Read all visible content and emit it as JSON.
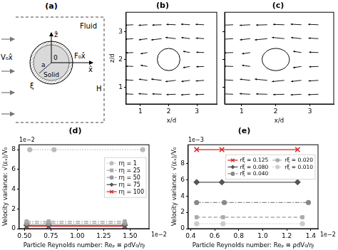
{
  "diagram": {
    "panel_label": "(a)",
    "labels": {
      "fluid": "Fluid",
      "solid": "Solid",
      "velocity": "V₀x̂",
      "force": "F₀x̂",
      "z_axis": "ẑ",
      "x_axis": "x̂",
      "origin": "0",
      "radius": "a",
      "xi": "ξ",
      "height": "H"
    }
  },
  "chart_data": [
    {
      "type": "quiver",
      "panel_label": "(b)",
      "x_label": "x/d",
      "y_label": "z/d",
      "xlim": [
        0.5,
        3.7
      ],
      "ylim": [
        0.4,
        3.7
      ],
      "xticks": [
        1,
        2,
        3
      ],
      "yticks": [
        1,
        2,
        3
      ],
      "grid": false,
      "circle": {
        "x": 2,
        "y": 2,
        "r": 0.4
      },
      "arrows": [
        [
          0.75,
          0.75,
          -1,
          0.05
        ],
        [
          1.25,
          0.75,
          -1.04,
          0.07
        ],
        [
          1.75,
          0.75,
          -1.09,
          0.04
        ],
        [
          2.25,
          0.75,
          -1.09,
          -0.04
        ],
        [
          2.75,
          0.75,
          -1.04,
          -0.07
        ],
        [
          3.25,
          0.75,
          -1,
          -0.05
        ],
        [
          0.75,
          1.25,
          -0.97,
          0.07
        ],
        [
          1.25,
          1.25,
          -1,
          0.14
        ],
        [
          1.75,
          1.25,
          -1.21,
          0.15
        ],
        [
          2.25,
          1.25,
          -1.21,
          -0.15
        ],
        [
          2.75,
          1.25,
          -1,
          -0.14
        ],
        [
          3.25,
          1.25,
          -0.97,
          -0.07
        ],
        [
          0.75,
          1.75,
          -0.91,
          0.04
        ],
        [
          1.25,
          1.75,
          -0.8,
          0.15
        ],
        [
          2.75,
          1.75,
          -0.8,
          -0.15
        ],
        [
          3.25,
          1.75,
          -0.91,
          -0.04
        ],
        [
          0.75,
          2.25,
          -0.91,
          -0.04
        ],
        [
          1.25,
          2.25,
          -0.8,
          -0.15
        ],
        [
          2.75,
          2.25,
          -0.8,
          0.15
        ],
        [
          3.25,
          2.25,
          -0.91,
          0.04
        ],
        [
          0.75,
          2.75,
          -0.97,
          -0.07
        ],
        [
          1.25,
          2.75,
          -1,
          -0.14
        ],
        [
          1.75,
          2.75,
          -1.21,
          -0.15
        ],
        [
          2.25,
          2.75,
          -1.21,
          0.15
        ],
        [
          2.75,
          2.75,
          -1,
          0.14
        ],
        [
          3.25,
          2.75,
          -0.97,
          0.07
        ],
        [
          0.75,
          3.25,
          -1,
          -0.05
        ],
        [
          1.25,
          3.25,
          -1.04,
          -0.07
        ],
        [
          1.75,
          3.25,
          -1.09,
          -0.04
        ],
        [
          2.25,
          3.25,
          -1.09,
          0.04
        ],
        [
          2.75,
          3.25,
          -1.04,
          0.07
        ],
        [
          3.25,
          3.25,
          -1,
          0.05
        ]
      ]
    },
    {
      "type": "quiver",
      "panel_label": "(c)",
      "x_label": "x/d",
      "xlim": [
        0.5,
        3.7
      ],
      "ylim": [
        0.4,
        3.7
      ],
      "xticks": [
        1,
        2,
        3
      ],
      "yticks": [
        1,
        2,
        3
      ],
      "tick_labels": "x",
      "grid": false,
      "circle": {
        "x": 2,
        "y": 2,
        "r": 0.4
      },
      "arrows": [
        [
          0.75,
          0.75,
          -1,
          0.05
        ],
        [
          1.25,
          0.75,
          -1.04,
          0.07
        ],
        [
          1.75,
          0.75,
          -1.09,
          0.04
        ],
        [
          2.25,
          0.75,
          -1.09,
          -0.04
        ],
        [
          2.75,
          0.75,
          -1.04,
          -0.07
        ],
        [
          3.25,
          0.75,
          -1,
          -0.05
        ],
        [
          0.75,
          1.25,
          -0.97,
          0.07
        ],
        [
          1.25,
          1.25,
          -1,
          0.14
        ],
        [
          1.75,
          1.25,
          -1.21,
          0.15
        ],
        [
          2.25,
          1.25,
          -1.21,
          -0.15
        ],
        [
          2.75,
          1.25,
          -1,
          -0.14
        ],
        [
          3.25,
          1.25,
          -0.97,
          -0.07
        ],
        [
          0.75,
          1.75,
          -0.91,
          0.04
        ],
        [
          1.25,
          1.75,
          -0.8,
          0.15
        ],
        [
          2.75,
          1.75,
          -0.8,
          -0.15
        ],
        [
          3.25,
          1.75,
          -0.91,
          -0.04
        ],
        [
          0.75,
          2.25,
          -0.91,
          -0.04
        ],
        [
          1.25,
          2.25,
          -0.8,
          -0.15
        ],
        [
          2.75,
          2.25,
          -0.8,
          0.15
        ],
        [
          3.25,
          2.25,
          -0.91,
          0.04
        ],
        [
          0.75,
          2.75,
          -0.97,
          -0.07
        ],
        [
          1.25,
          2.75,
          -1,
          -0.14
        ],
        [
          1.75,
          2.75,
          -1.21,
          -0.15
        ],
        [
          2.25,
          2.75,
          -1.21,
          0.15
        ],
        [
          2.75,
          2.75,
          -1,
          0.14
        ],
        [
          3.25,
          2.75,
          -0.97,
          0.07
        ],
        [
          0.75,
          3.25,
          -1,
          -0.05
        ],
        [
          1.25,
          3.25,
          -1.04,
          -0.07
        ],
        [
          1.75,
          3.25,
          -1.09,
          -0.04
        ],
        [
          2.25,
          3.25,
          -1.09,
          0.04
        ],
        [
          2.75,
          3.25,
          -1.04,
          0.07
        ],
        [
          3.25,
          3.25,
          -1,
          0.05
        ]
      ]
    },
    {
      "type": "line",
      "panel_label": "(d)",
      "x_label": "Particle Reynolds number: Reₚ ≡ ρdV₀/ηₗ",
      "y_label": "Velocity variance: √⟨εᵥ⟩/V₀",
      "x_scale_label": "1e−2",
      "y_scale_label": "1e−2",
      "xlim": [
        0.0045,
        0.0168
      ],
      "ylim": [
        0,
        0.085
      ],
      "xticks": [
        {
          "value": 0.005,
          "label": "0.50"
        },
        {
          "value": 0.0075,
          "label": "0.75"
        },
        {
          "value": 0.01,
          "label": "1.00"
        },
        {
          "value": 0.0125,
          "label": "1.25"
        },
        {
          "value": 0.015,
          "label": "1.50"
        }
      ],
      "yticks": [
        0,
        {
          "value": 0.02,
          "label": "2"
        },
        {
          "value": 0.04,
          "label": "4"
        },
        {
          "value": 0.06,
          "label": "6"
        },
        {
          "value": 0.08,
          "label": "8"
        }
      ],
      "grid": false,
      "legend": "right",
      "series": [
        {
          "name": "rη = 1",
          "color": "#bbbbbb",
          "marker": "circle",
          "line_style": "dotted",
          "x": [
            0.0055,
            0.0078,
            0.0162
          ],
          "values": [
            0.08,
            0.08,
            0.08
          ]
        },
        {
          "name": "rη = 25",
          "color": "#aaaaaa",
          "marker": "square",
          "line_style": "dashdot",
          "x": [
            0.0052,
            0.0073,
            0.0145
          ],
          "values": [
            0.0074,
            0.0074,
            0.0074
          ]
        },
        {
          "name": "rη = 50",
          "color": "#999999",
          "marker": "circle",
          "line_style": "dashdot",
          "x": [
            0.0052,
            0.0073,
            0.0145
          ],
          "values": [
            0.0055,
            0.0055,
            0.0055
          ]
        },
        {
          "name": "rη = 75",
          "color": "#555555",
          "marker": "diamond",
          "line_style": "solid",
          "x": [
            0.0052,
            0.0073,
            0.0145
          ],
          "values": [
            0.0035,
            0.0035,
            0.0035
          ]
        },
        {
          "name": "rη = 100",
          "color": "#d62728",
          "marker": "x",
          "line_style": "solid",
          "x": [
            0.0052,
            0.0073,
            0.0145
          ],
          "values": [
            0.0025,
            0.0025,
            0.0025
          ]
        }
      ]
    },
    {
      "type": "line",
      "panel_label": "(e)",
      "x_label": "Particle Reynolds number: Reₚ ≡ ρdV₀/ηₗ",
      "y_label": "Velocity variance: √⟨εᵥ⟩/V₀",
      "x_scale_label": "1e−2",
      "y_scale_label": "1e−3",
      "xlim": [
        0.0038,
        0.0146
      ],
      "ylim": [
        0,
        0.0103
      ],
      "xticks": [
        {
          "value": 0.004,
          "label": "0.4"
        },
        {
          "value": 0.006,
          "label": "0.6"
        },
        {
          "value": 0.008,
          "label": "0.8"
        },
        {
          "value": 0.01,
          "label": "1.0"
        },
        {
          "value": 0.012,
          "label": "1.2"
        },
        {
          "value": 0.014,
          "label": "1.4"
        }
      ],
      "yticks": [
        0,
        {
          "value": 0.002,
          "label": "2"
        },
        {
          "value": 0.004,
          "label": "4"
        },
        {
          "value": 0.006,
          "label": "6"
        },
        {
          "value": 0.008,
          "label": "8"
        }
      ],
      "grid": false,
      "legend": "right",
      "series": [
        {
          "name": "rξ = 0.125",
          "color": "#d62728",
          "marker": "x",
          "line_style": "solid",
          "x": [
            0.0045,
            0.0066,
            0.0129
          ],
          "values": [
            0.0097,
            0.0097,
            0.0097
          ]
        },
        {
          "name": "rξ = 0.080",
          "color": "#555555",
          "marker": "diamond",
          "line_style": "solid",
          "x": [
            0.0045,
            0.0066,
            0.0129
          ],
          "values": [
            0.0057,
            0.0057,
            0.0057
          ]
        },
        {
          "name": "rξ = 0.040",
          "color": "#888888",
          "marker": "circle",
          "line_style": "dashdot",
          "x": [
            0.0045,
            0.0068,
            0.0138
          ],
          "values": [
            0.0032,
            0.0032,
            0.0032
          ]
        },
        {
          "name": "rξ = 0.020",
          "color": "#aaaaaa",
          "marker": "square",
          "line_style": "dashed",
          "x": [
            0.0045,
            0.0067,
            0.0133
          ],
          "values": [
            0.0014,
            0.0014,
            0.0014
          ]
        },
        {
          "name": "rξ = 0.010",
          "color": "#cccccc",
          "marker": "circle",
          "line_style": "dotted",
          "x": [
            0.0045,
            0.0067,
            0.0133
          ],
          "values": [
            0.0006,
            0.0006,
            0.0006
          ]
        }
      ]
    }
  ]
}
